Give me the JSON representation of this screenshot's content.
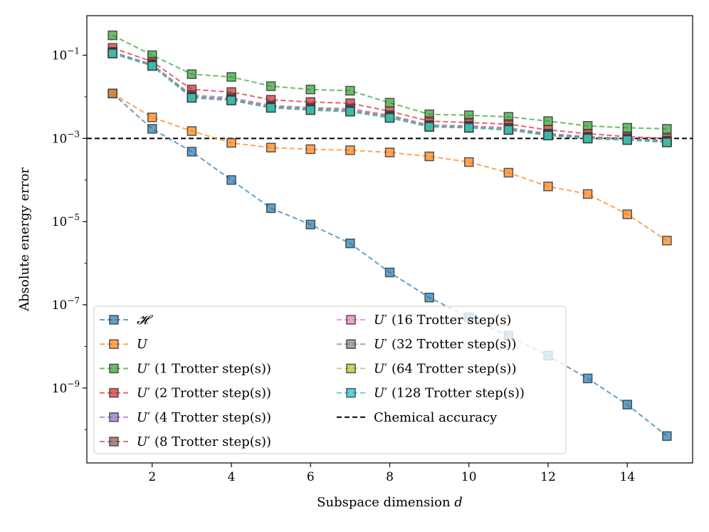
{
  "chart_data": {
    "type": "line",
    "xlabel_text": "Subspace dimension ",
    "xlabel_var": "d",
    "ylabel": "Absolute energy error",
    "yscale": "log",
    "xlim": [
      0.35,
      15.65
    ],
    "ylim_log10": [
      -10.8,
      -0.05
    ],
    "x_ticks": [
      2,
      4,
      6,
      8,
      10,
      12,
      14
    ],
    "x_tick_labels": [
      "2",
      "4",
      "6",
      "8",
      "10",
      "12",
      "14"
    ],
    "y_ticks_log10": [
      -1,
      -3,
      -5,
      -7,
      -9
    ],
    "y_tick_labels": [
      {
        "base": "10",
        "exp": "−1"
      },
      {
        "base": "10",
        "exp": "−3"
      },
      {
        "base": "10",
        "exp": "−5"
      },
      {
        "base": "10",
        "exp": "−7"
      },
      {
        "base": "10",
        "exp": "−9"
      }
    ],
    "x": [
      1,
      2,
      3,
      4,
      5,
      6,
      7,
      8,
      9,
      10,
      11,
      12,
      13,
      14,
      15
    ],
    "reference_line": {
      "name": "Chemical accuracy",
      "value": 0.001,
      "color": "#000000"
    },
    "series": [
      {
        "name": "𝓗",
        "color": "#1f77b4",
        "values": [
          0.012,
          0.0017,
          0.00048,
          0.0001,
          2.1e-05,
          8.5e-06,
          3e-06,
          6e-07,
          1.5e-07,
          5e-08,
          1.8e-08,
          6e-09,
          1.7e-09,
          4e-10,
          7e-11
        ]
      },
      {
        "name": "U",
        "color": "#ff7f0e",
        "values": [
          0.012,
          0.0032,
          0.0015,
          0.00078,
          0.0006,
          0.00055,
          0.00052,
          0.00046,
          0.00037,
          0.00027,
          0.00015,
          7e-05,
          4.6e-05,
          1.5e-05,
          3.5e-06
        ]
      },
      {
        "name": "U′ (1 Trotter step(s))",
        "color": "#2ca02c",
        "values": [
          0.3,
          0.1,
          0.035,
          0.03,
          0.018,
          0.015,
          0.014,
          0.0072,
          0.0038,
          0.0036,
          0.0033,
          0.0026,
          0.002,
          0.0018,
          0.0017
        ]
      },
      {
        "name": "U′ (2 Trotter step(s))",
        "color": "#d62728",
        "values": [
          0.15,
          0.07,
          0.015,
          0.013,
          0.0085,
          0.0075,
          0.007,
          0.0045,
          0.0026,
          0.0024,
          0.0022,
          0.0016,
          0.0013,
          0.0011,
          0.001
        ]
      },
      {
        "name": "U′ (4 Trotter step(s))",
        "color": "#9467bd",
        "values": [
          0.12,
          0.06,
          0.011,
          0.0095,
          0.0062,
          0.0055,
          0.0052,
          0.0036,
          0.0021,
          0.002,
          0.0018,
          0.0013,
          0.0011,
          0.001,
          0.00088
        ]
      },
      {
        "name": "U′ (8 Trotter step(s))",
        "color": "#8c564b",
        "values": [
          0.115,
          0.058,
          0.0102,
          0.0088,
          0.0058,
          0.0052,
          0.0048,
          0.0034,
          0.002,
          0.0019,
          0.0017,
          0.00125,
          0.00105,
          0.00097,
          0.00085
        ]
      },
      {
        "name": "U′ (16 Trotter step(s))",
        "color": "#e377c2",
        "values": [
          0.112,
          0.057,
          0.0098,
          0.0085,
          0.0056,
          0.005,
          0.0046,
          0.0033,
          0.002,
          0.0019,
          0.0017,
          0.0012,
          0.00102,
          0.00095,
          0.00083
        ]
      },
      {
        "name": "U′ (32 Trotter step(s))",
        "color": "#7f7f7f",
        "values": [
          0.111,
          0.056,
          0.0096,
          0.0083,
          0.0055,
          0.0049,
          0.0045,
          0.0032,
          0.0019,
          0.0018,
          0.0016,
          0.0012,
          0.001,
          0.00093,
          0.00082
        ]
      },
      {
        "name": "U′ (64 Trotter step(s))",
        "color": "#bcbd22",
        "values": [
          0.11,
          0.056,
          0.0095,
          0.0082,
          0.0055,
          0.0048,
          0.0044,
          0.0032,
          0.0019,
          0.0018,
          0.0016,
          0.00118,
          0.001,
          0.00092,
          0.00081
        ]
      },
      {
        "name": "U′ (128 Trotter step(s))",
        "color": "#17becf",
        "values": [
          0.11,
          0.055,
          0.0094,
          0.0082,
          0.0054,
          0.0048,
          0.0044,
          0.0031,
          0.0019,
          0.0018,
          0.0016,
          0.00117,
          0.00099,
          0.00091,
          0.0008
        ]
      }
    ],
    "legend": {
      "placement": "lower-left",
      "columns": 2,
      "entries": [
        {
          "series": 0,
          "prefix": "",
          "var": "𝓗",
          "suffix": ""
        },
        {
          "series": 1,
          "prefix": "",
          "var": "U",
          "suffix": ""
        },
        {
          "series": 2,
          "prefix": "",
          "var": "U",
          "suffix": "′ (1 Trotter step(s))"
        },
        {
          "series": 3,
          "prefix": "",
          "var": "U",
          "suffix": "′ (2 Trotter step(s))"
        },
        {
          "series": 4,
          "prefix": "",
          "var": "U",
          "suffix": "′ (4 Trotter step(s))"
        },
        {
          "series": 5,
          "prefix": "",
          "var": "U",
          "suffix": "′ (8 Trotter step(s))"
        },
        {
          "series": 6,
          "prefix": "",
          "var": "U",
          "suffix": "′ (16 Trotter step(s)"
        },
        {
          "series": 7,
          "prefix": "",
          "var": "U",
          "suffix": "′ (32 Trotter step(s))"
        },
        {
          "series": 8,
          "prefix": "",
          "var": "U",
          "suffix": "′ (64 Trotter step(s))"
        },
        {
          "series": 9,
          "prefix": "",
          "var": "U",
          "suffix": "′ (128 Trotter step(s))"
        },
        {
          "series": "reference",
          "prefix": "Chemical accuracy",
          "var": "",
          "suffix": ""
        }
      ]
    }
  }
}
